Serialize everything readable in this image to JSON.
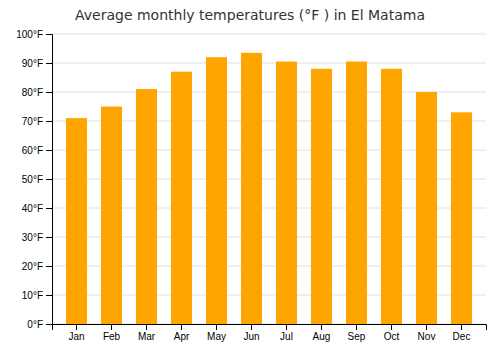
{
  "chart_data": {
    "type": "bar",
    "title": "Average monthly temperatures (°F ) in El Matama",
    "categories": [
      "Jan",
      "Feb",
      "Mar",
      "Apr",
      "May",
      "Jun",
      "Jul",
      "Aug",
      "Sep",
      "Oct",
      "Nov",
      "Dec"
    ],
    "values": [
      71,
      75,
      81,
      87,
      92,
      93.5,
      90.5,
      88,
      90.5,
      88,
      80,
      73
    ],
    "color": "#FFA500",
    "ylim": [
      0,
      100
    ],
    "yticks": [
      {
        "value": 0,
        "label": "0°F"
      },
      {
        "value": 10,
        "label": "10°F"
      },
      {
        "value": 20,
        "label": "20°F"
      },
      {
        "value": 30,
        "label": "30°F"
      },
      {
        "value": 40,
        "label": "40°F"
      },
      {
        "value": 50,
        "label": "50°F"
      },
      {
        "value": 60,
        "label": "60°F"
      },
      {
        "value": 70,
        "label": "70°F"
      },
      {
        "value": 80,
        "label": "80°F"
      },
      {
        "value": 90,
        "label": "90°F"
      },
      {
        "value": 100,
        "label": "100°F"
      }
    ],
    "grid": true
  }
}
